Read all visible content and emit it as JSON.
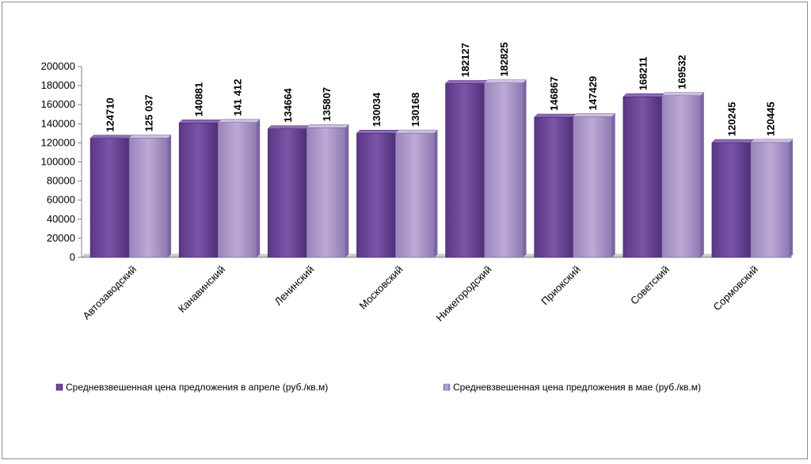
{
  "chart_data": {
    "type": "bar",
    "categories": [
      "Автозаводский",
      "Канавинский",
      "Ленинский",
      "Московский",
      "Нижегородский",
      "Приокский",
      "Советский",
      "Сормовский"
    ],
    "series": [
      {
        "name": "Средневзвешенная цена предложения в апреле (руб./кв.м)",
        "values": [
          124710,
          140881,
          134664,
          130034,
          182127,
          146867,
          168211,
          120245
        ],
        "labels": [
          "124710",
          "140881",
          "134664",
          "130034",
          "182127",
          "146867",
          "168211",
          "120245"
        ],
        "color": "#6a4595"
      },
      {
        "name": "Средневзвешенная цена предложения в мае (руб./кв.м)",
        "values": [
          125037,
          141412,
          135807,
          130168,
          182825,
          147429,
          169532,
          120445
        ],
        "labels": [
          "125 037",
          "141 412",
          "135807",
          "130168",
          "182825",
          "147429",
          "169532",
          "120445"
        ],
        "color": "#a48fc3"
      }
    ],
    "ylim": [
      0,
      200000
    ],
    "yticks": [
      "0",
      "20000",
      "40000",
      "60000",
      "80000",
      "100000",
      "120000",
      "140000",
      "160000",
      "180000",
      "200000"
    ],
    "grid": false,
    "legend": "bottom"
  }
}
